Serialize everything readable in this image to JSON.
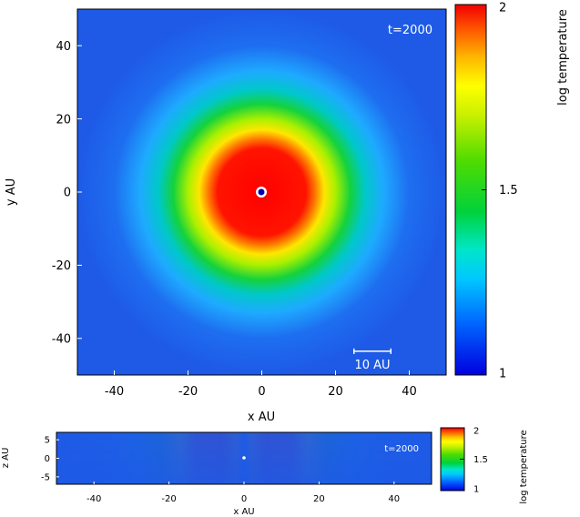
{
  "chart_data": [
    {
      "type": "heatmap",
      "view": "face-on",
      "xlabel": "x AU",
      "ylabel": "y AU",
      "xlim": [
        -50,
        50
      ],
      "ylim": [
        -50,
        50
      ],
      "xticks": [
        "-40",
        "-20",
        "0",
        "20",
        "40"
      ],
      "yticks": [
        "-40",
        "-20",
        "0",
        "20",
        "40"
      ],
      "xtick_values": [
        -40,
        -20,
        0,
        20,
        40
      ],
      "ytick_values": [
        -40,
        -20,
        0,
        20,
        40
      ],
      "time_label": "t=2000",
      "scalebar": {
        "length_au": 10,
        "label": "10 AU"
      },
      "colorbar": {
        "label": "log temperature",
        "range": [
          1,
          2
        ],
        "ticks": [
          "1",
          "1.5",
          "2"
        ],
        "tick_values": [
          1,
          1.5,
          2
        ],
        "colormap": "rainbow"
      },
      "field_structure": {
        "center_value": 2,
        "hot_core_radius_au": 14,
        "green_ring_radius_au": 25,
        "outer_value": 1.1
      },
      "grid": false
    },
    {
      "type": "heatmap",
      "view": "edge-on",
      "xlabel": "x AU",
      "ylabel": "z AU",
      "xlim": [
        -50,
        50
      ],
      "ylim": [
        -7,
        7
      ],
      "xticks": [
        "-40",
        "-20",
        "0",
        "20",
        "40"
      ],
      "yticks": [
        "-5",
        "0",
        "5"
      ],
      "xtick_values": [
        -40,
        -20,
        0,
        20,
        40
      ],
      "ytick_values": [
        -5,
        0,
        5
      ],
      "time_label": "t=2000",
      "colorbar": {
        "label": "log temperature",
        "range": [
          1,
          2
        ],
        "ticks": [
          "1",
          "1.5",
          "2"
        ],
        "tick_values": [
          1,
          1.5,
          2
        ],
        "colormap": "rainbow"
      },
      "grid": false
    }
  ]
}
